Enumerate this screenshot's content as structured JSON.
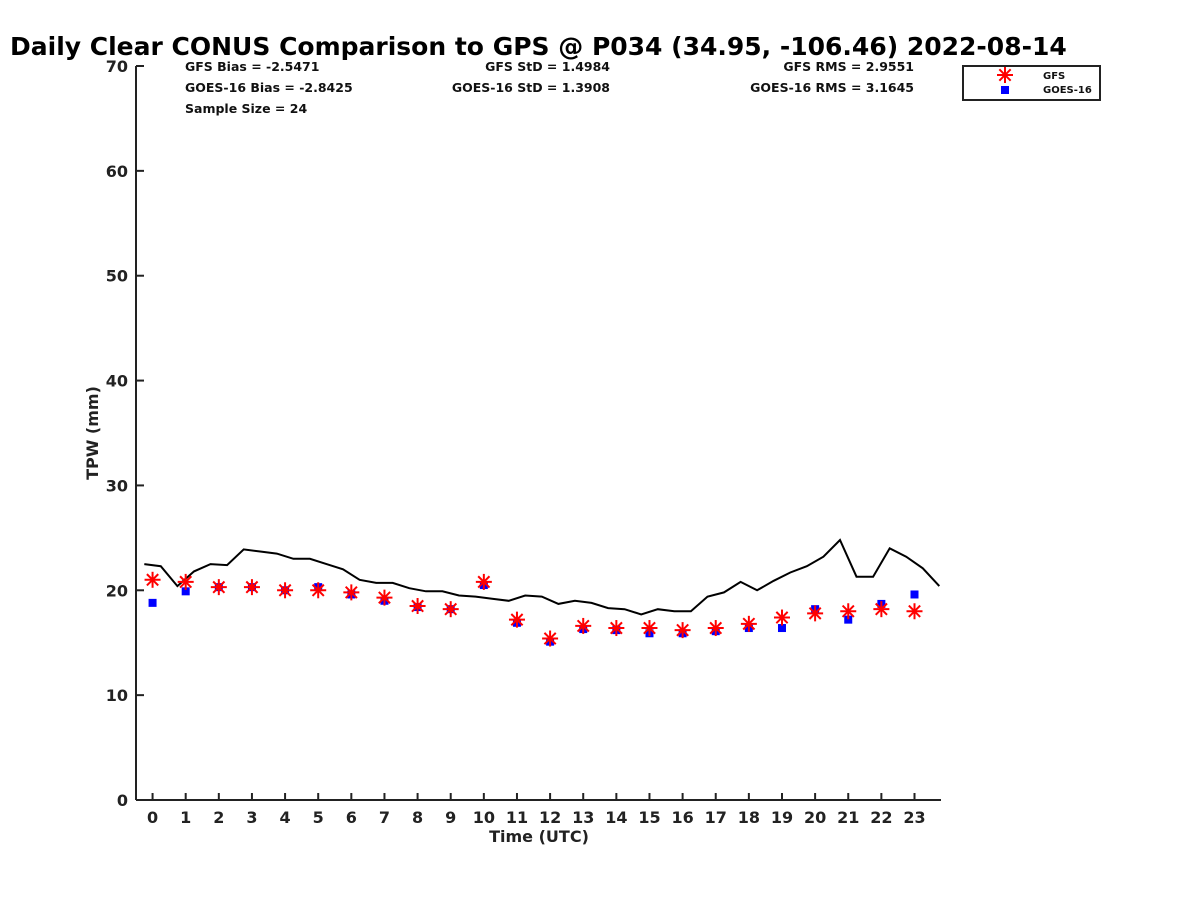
{
  "chart_data": {
    "type": "scatter",
    "title": "Daily Clear CONUS Comparison to GPS @ P034 (34.95, -106.46) 2022-08-14",
    "xlabel": "Time (UTC)",
    "ylabel": "TPW (mm)",
    "xlim": [
      -0.5,
      23.8
    ],
    "ylim": [
      0,
      70
    ],
    "x_ticks": [
      "0",
      "1",
      "2",
      "3",
      "4",
      "5",
      "6",
      "7",
      "8",
      "9",
      "10",
      "11",
      "12",
      "13",
      "14",
      "15",
      "16",
      "17",
      "18",
      "19",
      "20",
      "21",
      "22",
      "23"
    ],
    "y_ticks": [
      "0",
      "10",
      "20",
      "30",
      "40",
      "50",
      "60",
      "70"
    ],
    "grid": false,
    "legend_position": "top-right",
    "series": [
      {
        "name": "GFS",
        "marker": "asterisk",
        "color": "#ff0000",
        "x": [
          0,
          1,
          2,
          3,
          4,
          5,
          6,
          7,
          8,
          9,
          10,
          11,
          12,
          13,
          14,
          15,
          16,
          17,
          18,
          19,
          20,
          21,
          22,
          23
        ],
        "y": [
          21.0,
          20.8,
          20.3,
          20.3,
          20.0,
          20.0,
          19.8,
          19.3,
          18.5,
          18.2,
          20.8,
          17.2,
          15.4,
          16.6,
          16.4,
          16.4,
          16.2,
          16.4,
          16.8,
          17.4,
          17.8,
          18.0,
          18.2,
          18.0
        ]
      },
      {
        "name": "GOES-16",
        "marker": "square",
        "color": "#0000ff",
        "x": [
          0,
          1,
          2,
          3,
          4,
          5,
          6,
          7,
          8,
          9,
          10,
          11,
          12,
          13,
          14,
          15,
          16,
          17,
          18,
          19,
          20,
          21,
          22,
          23
        ],
        "y": [
          18.8,
          19.9,
          20.3,
          20.3,
          20.0,
          20.3,
          19.6,
          19.0,
          18.4,
          18.2,
          20.5,
          16.9,
          15.1,
          16.3,
          16.2,
          15.9,
          15.9,
          16.1,
          16.4,
          16.4,
          18.2,
          17.2,
          18.7,
          19.6
        ]
      },
      {
        "marker": "line",
        "color": "#000000",
        "x": [
          -0.25,
          0.25,
          0.75,
          1.25,
          1.75,
          2.25,
          2.75,
          3.25,
          3.75,
          4.25,
          4.75,
          5.25,
          5.75,
          6.25,
          6.75,
          7.25,
          7.75,
          8.25,
          8.75,
          9.25,
          9.75,
          10.25,
          10.75,
          11.25,
          11.75,
          12.25,
          12.75,
          13.25,
          13.75,
          14.25,
          14.75,
          15.25,
          15.75,
          16.25,
          16.75,
          17.25,
          17.75,
          18.25,
          18.75,
          19.25,
          19.75,
          20.25,
          20.75,
          21.25,
          21.75,
          22.25,
          22.75,
          23.25,
          23.75
        ],
        "y": [
          22.5,
          22.3,
          20.4,
          21.8,
          22.5,
          22.4,
          23.9,
          23.7,
          23.5,
          23.0,
          23.0,
          22.5,
          22.0,
          21.0,
          20.7,
          20.7,
          20.2,
          19.9,
          19.9,
          19.5,
          19.4,
          19.2,
          19.0,
          19.5,
          19.4,
          18.7,
          19.0,
          18.8,
          18.3,
          18.2,
          17.7,
          18.2,
          18.0,
          18.0,
          19.4,
          19.8,
          20.8,
          20.0,
          20.9,
          21.7,
          22.3,
          23.2,
          24.8,
          21.3,
          21.3,
          24.0,
          23.2,
          22.1,
          20.4
        ]
      }
    ]
  },
  "stats": {
    "gfs_bias": "GFS Bias = -2.5471",
    "goes_bias": "GOES-16 Bias = -2.8425",
    "sample_size": "Sample Size = 24",
    "gfs_std": "GFS StD = 1.4984",
    "goes_std": "GOES-16 StD = 1.3908",
    "gfs_rms": "GFS RMS = 2.9551",
    "goes_rms": "GOES-16 RMS = 3.1645"
  }
}
